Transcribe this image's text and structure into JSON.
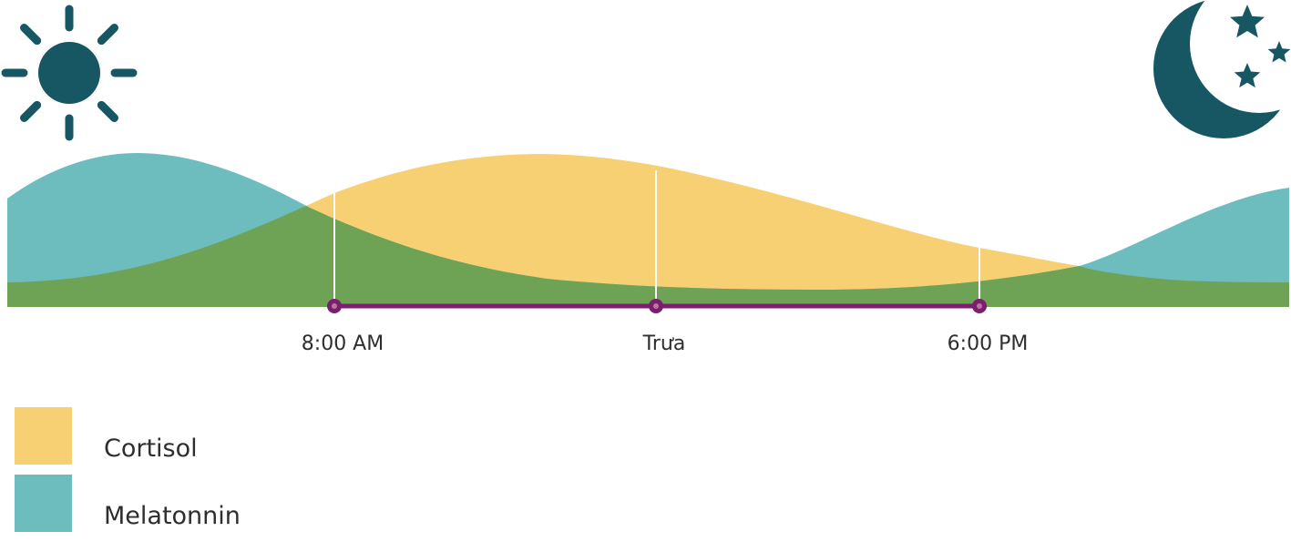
{
  "chart_data": {
    "type": "area",
    "x": [
      "8:00 AM",
      "Trưa",
      "6:00 PM"
    ],
    "series": [
      {
        "name": "Cortisol",
        "color": "#f8d074"
      },
      {
        "name": "Melatonnin",
        "color": "#6dbdbe"
      }
    ],
    "overlap_color": "#6ea255",
    "axis_color": "#7c1d6f",
    "title": "",
    "xlabel": "",
    "ylabel": "",
    "icons": {
      "day": "sun-icon",
      "night": "moon-stars-icon",
      "icon_color": "#175763"
    }
  }
}
